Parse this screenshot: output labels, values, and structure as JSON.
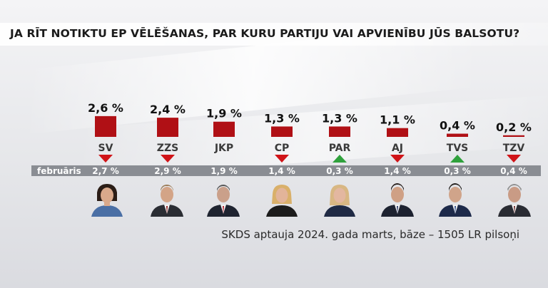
{
  "title": "JA RĪT NOTIKTU EP VĒLĒŠANAS, PAR KURU PARTIJU VAI APVIENĪBU JŪS BALSOTU?",
  "source": "SKDS aptauja 2024. gada marts, bāze – 1505 LR pilsoņi",
  "colors": {
    "bar": "#b01015",
    "down": "#d01418",
    "up": "#2fa13c",
    "strip": "#8a8d93"
  },
  "chart_data": {
    "type": "bar",
    "categories": [
      "SV",
      "ZZS",
      "JKP",
      "CP",
      "PAR",
      "AJ",
      "TVS",
      "TZV"
    ],
    "values": [
      2.6,
      2.4,
      1.9,
      1.3,
      1.3,
      1.1,
      0.4,
      0.2
    ],
    "value_labels": [
      "2,6 %",
      "2,4 %",
      "1,9 %",
      "1,3 %",
      "1,3 %",
      "1,1 %",
      "0,4 %",
      "0,2 %"
    ],
    "previous_label": "februāris",
    "previous_values": [
      2.7,
      2.9,
      1.9,
      1.4,
      0.3,
      1.4,
      0.3,
      0.4
    ],
    "previous_value_labels": [
      "2,7 %",
      "2,9 %",
      "1,9 %",
      "1,4 %",
      "0,3 %",
      "1,4 %",
      "0,3 %",
      "0,4 %"
    ],
    "change": [
      "down",
      "down",
      "none",
      "down",
      "up",
      "down",
      "up",
      "down"
    ]
  }
}
